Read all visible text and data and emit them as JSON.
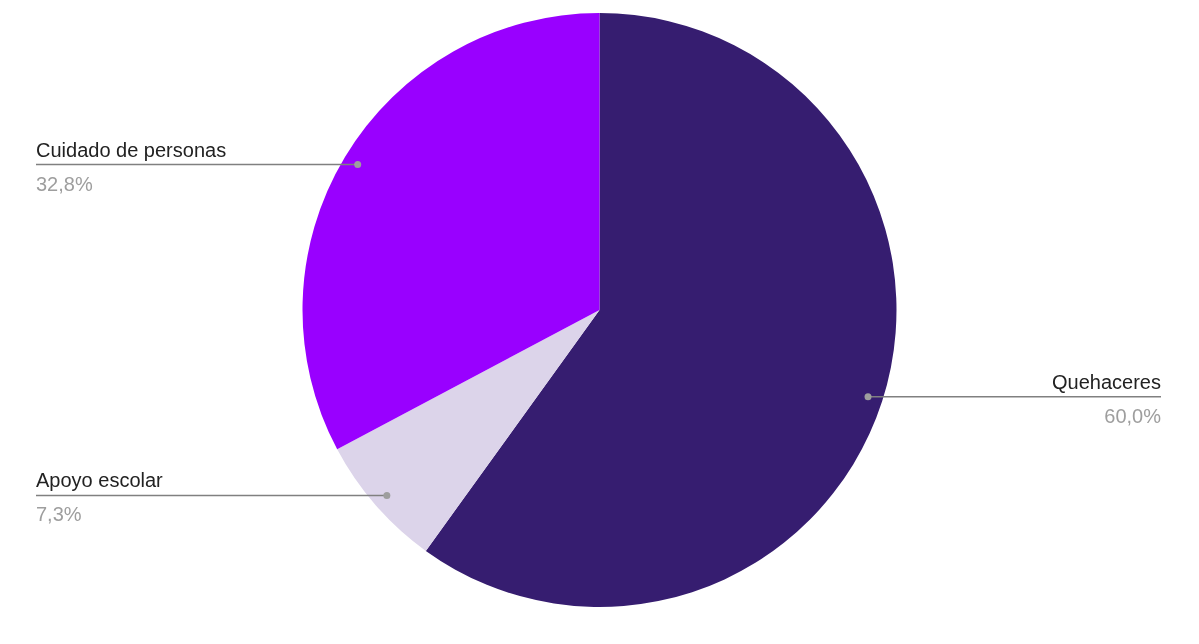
{
  "chart_data": {
    "type": "pie",
    "categories": [
      "Quehaceres",
      "Apoyo escolar",
      "Cuidado de personas"
    ],
    "values": [
      60.0,
      7.3,
      32.8
    ],
    "colors": [
      "#361d70",
      "#dcd4ea",
      "#9900ff"
    ],
    "value_labels": [
      "60,0%",
      "7,3%",
      "32,8%"
    ],
    "legend": false
  }
}
